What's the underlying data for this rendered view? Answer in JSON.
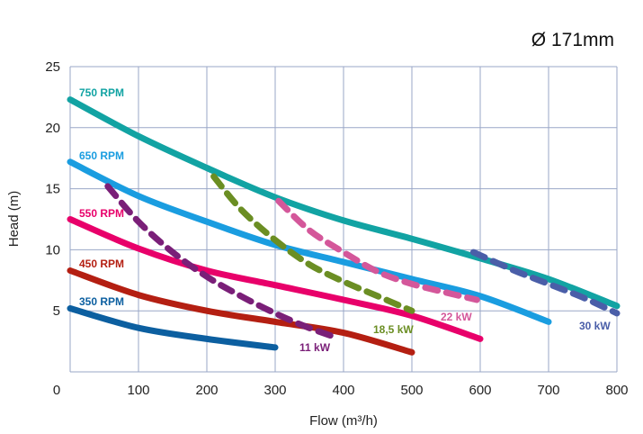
{
  "chart_data": {
    "type": "line",
    "title": "Ø 171mm",
    "xlabel": "Flow (m³/h)",
    "ylabel": "Head (m)",
    "xlim": [
      0,
      800
    ],
    "ylim": [
      0,
      25
    ],
    "x_ticks": [
      "0",
      "100",
      "200",
      "300",
      "400",
      "500",
      "600",
      "700",
      "800"
    ],
    "y_ticks": [
      "5",
      "10",
      "15",
      "20",
      "25"
    ],
    "grid": true,
    "speed_curves": [
      {
        "name": "750 RPM",
        "color": "#12a3a3",
        "x": [
          0,
          100,
          200,
          300,
          400,
          500,
          600,
          700,
          800
        ],
        "y": [
          22.3,
          19.3,
          16.7,
          14.3,
          12.4,
          10.9,
          9.3,
          7.6,
          5.4
        ]
      },
      {
        "name": "650 RPM",
        "color": "#1a9de0",
        "x": [
          0,
          100,
          200,
          300,
          400,
          500,
          600,
          700
        ],
        "y": [
          17.2,
          14.4,
          12.3,
          10.4,
          9.0,
          7.6,
          6.2,
          4.1
        ]
      },
      {
        "name": "550 RPM",
        "color": "#e8006a",
        "x": [
          0,
          100,
          200,
          300,
          400,
          500,
          600
        ],
        "y": [
          12.5,
          10.1,
          8.3,
          7.1,
          5.9,
          4.6,
          2.7
        ]
      },
      {
        "name": "450 RPM",
        "color": "#b41f12",
        "x": [
          0,
          100,
          200,
          300,
          400,
          500
        ],
        "y": [
          8.3,
          6.3,
          5.0,
          4.1,
          3.2,
          1.6
        ]
      },
      {
        "name": "350 RPM",
        "color": "#0c5fa0",
        "x": [
          0,
          100,
          200,
          300
        ],
        "y": [
          5.2,
          3.6,
          2.7,
          2.0
        ]
      }
    ],
    "power_curves": [
      {
        "name": "11 kW",
        "color": "#7a1f78",
        "x": [
          55,
          100,
          150,
          200,
          250,
          300,
          345,
          385
        ],
        "y": [
          15.2,
          12.3,
          9.8,
          7.8,
          6.2,
          4.8,
          3.7,
          2.9
        ]
      },
      {
        "name": "18,5 kW",
        "color": "#6b8e23",
        "x": [
          210,
          250,
          300,
          350,
          400,
          450,
          500
        ],
        "y": [
          16.0,
          13.3,
          10.8,
          8.8,
          7.4,
          6.2,
          5.0
        ]
      },
      {
        "name": "22 kW",
        "color": "#d4579a",
        "x": [
          305,
          350,
          400,
          450,
          500,
          550,
          595
        ],
        "y": [
          14.0,
          11.6,
          9.8,
          8.2,
          7.2,
          6.5,
          5.9
        ]
      },
      {
        "name": "30 kW",
        "color": "#4a5ea8",
        "x": [
          590,
          650,
          700,
          750,
          800
        ],
        "y": [
          9.8,
          8.3,
          7.2,
          6.1,
          4.8
        ]
      }
    ]
  }
}
